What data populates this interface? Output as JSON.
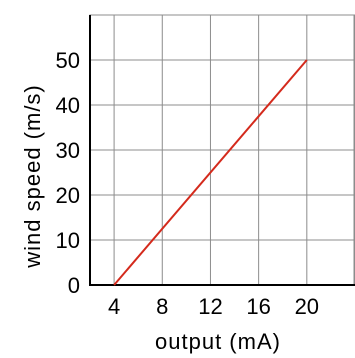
{
  "chart_data": {
    "type": "line",
    "title": "",
    "xlabel": "output (mA)",
    "ylabel": "wind speed (m/s)",
    "xlim": [
      2,
      24
    ],
    "ylim": [
      0,
      60
    ],
    "x_ticks": [
      4,
      8,
      12,
      16,
      20
    ],
    "y_ticks": [
      0,
      10,
      20,
      30,
      40,
      50
    ],
    "x_tick_labels": [
      "4",
      "8",
      "12",
      "16",
      "20"
    ],
    "y_tick_labels": [
      "0",
      "10",
      "20",
      "30",
      "40",
      "50"
    ],
    "grid": true,
    "series": [
      {
        "color": "#d42a1c",
        "x": [
          4,
          20
        ],
        "y": [
          0,
          50
        ]
      }
    ]
  }
}
